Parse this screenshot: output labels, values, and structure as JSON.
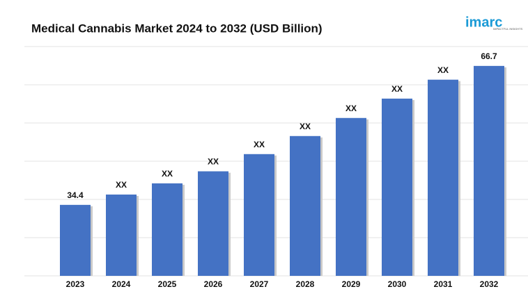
{
  "chart_data": {
    "type": "bar",
    "title": "Medical Cannabis Market 2024 to 2032 (USD Billion)",
    "categories": [
      "2023",
      "2024",
      "2025",
      "2026",
      "2027",
      "2028",
      "2029",
      "2030",
      "2031",
      "2032"
    ],
    "values": [
      34.4,
      36.8,
      39.4,
      42.2,
      46.2,
      50.4,
      54.6,
      59.1,
      63.5,
      66.7
    ],
    "value_labels": [
      "34.4",
      "XX",
      "XX",
      "XX",
      "XX",
      "XX",
      "XX",
      "XX",
      "XX",
      "66.7"
    ],
    "color": "#4472c4",
    "ylim": [
      17.9,
      71.2
    ],
    "grid": true
  },
  "logo": {
    "name": "imarc",
    "tagline": "IMPACTFUL INSIGHTS"
  }
}
